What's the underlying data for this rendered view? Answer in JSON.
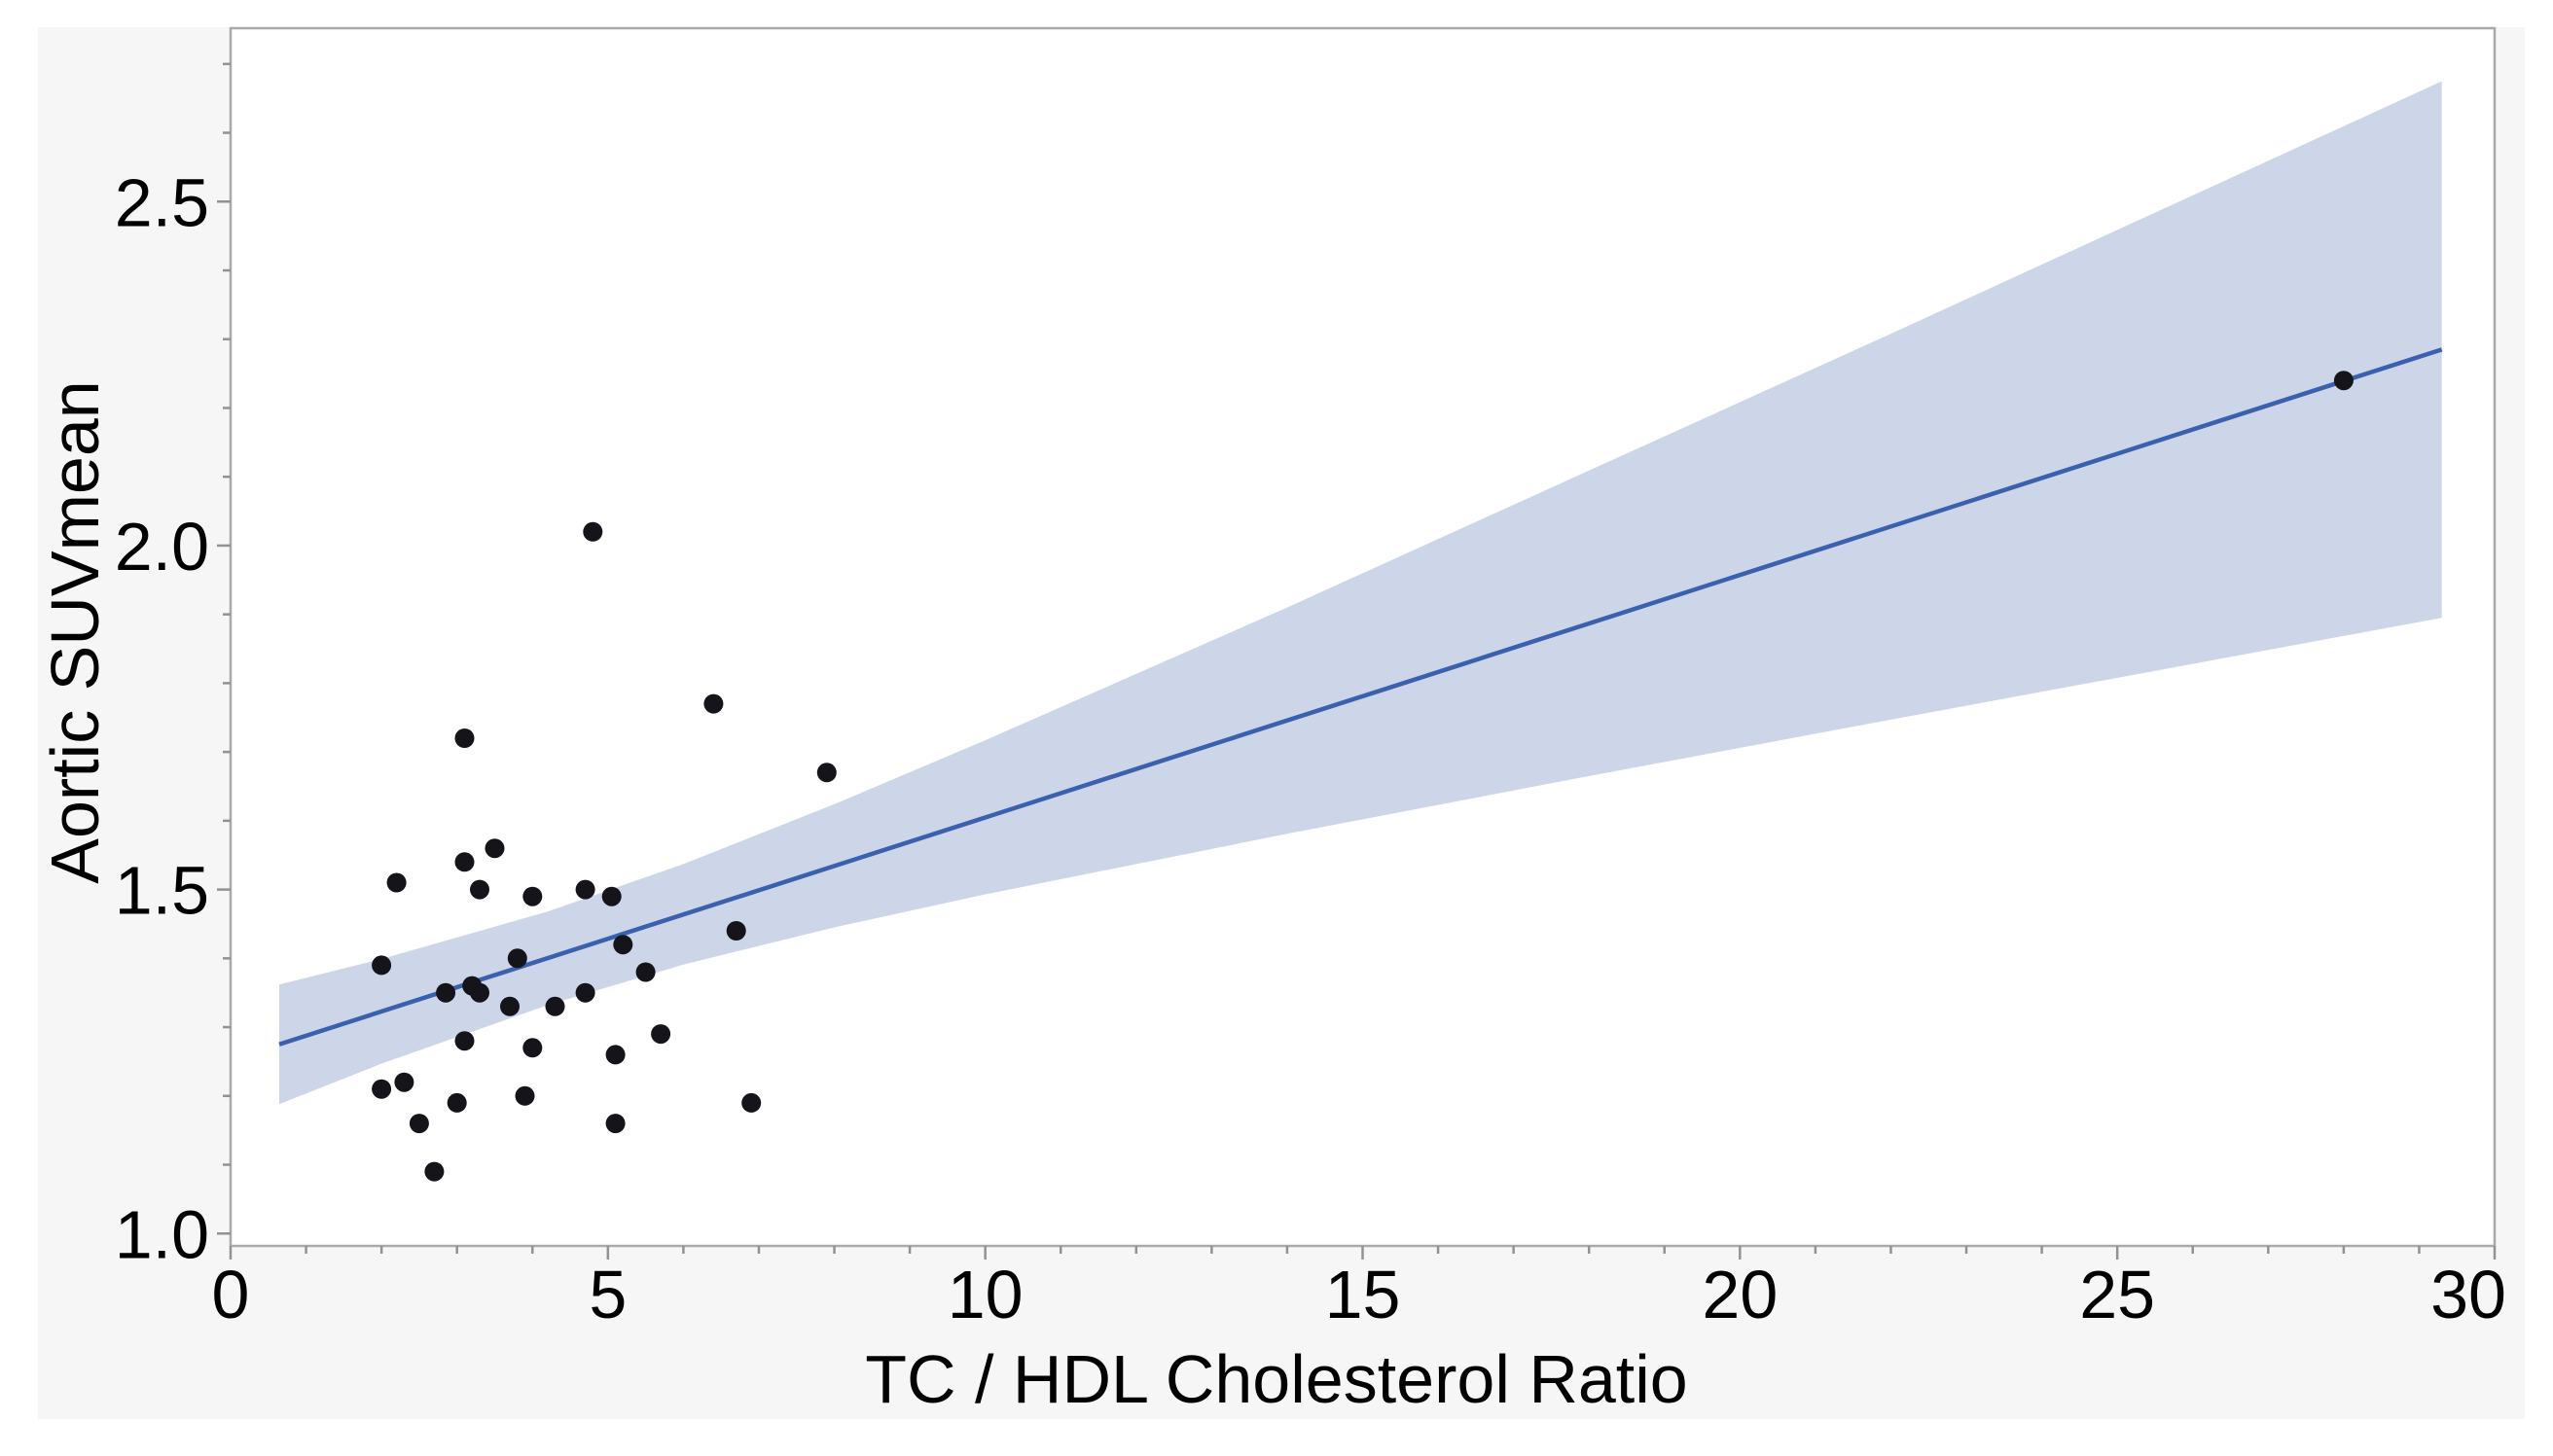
{
  "figure": {
    "background": "#ffffff",
    "panel_background": "#f6f6f7"
  },
  "chart_data": {
    "type": "scatter",
    "title": "",
    "xlabel": "TC / HDL Cholesterol Ratio",
    "ylabel": "Aortic SUVmean",
    "xlim": [
      0,
      30
    ],
    "ylim": [
      0.982,
      2.752
    ],
    "grid": false,
    "legend": null,
    "x_major_ticks": [
      0,
      5,
      10,
      15,
      20,
      25,
      30
    ],
    "x_tick_labels": [
      "0",
      "5",
      "10",
      "15",
      "20",
      "25",
      "30"
    ],
    "x_minor_step": 1,
    "y_major_ticks": [
      1.0,
      1.5,
      2.0,
      2.5
    ],
    "y_tick_labels": [
      "1.0",
      "1.5",
      "2.0",
      "2.5"
    ],
    "y_minor_step": 0.1,
    "y_minor_range": [
      1.0,
      2.7
    ],
    "points": [
      [
        4.8,
        2.02
      ],
      [
        3.1,
        1.72
      ],
      [
        6.4,
        1.77
      ],
      [
        7.9,
        1.67
      ],
      [
        3.5,
        1.56
      ],
      [
        3.1,
        1.54
      ],
      [
        2.2,
        1.51
      ],
      [
        3.3,
        1.5
      ],
      [
        4.0,
        1.49
      ],
      [
        4.7,
        1.5
      ],
      [
        5.05,
        1.49
      ],
      [
        5.2,
        1.42
      ],
      [
        6.7,
        1.44
      ],
      [
        2.0,
        1.39
      ],
      [
        3.8,
        1.4
      ],
      [
        2.85,
        1.35
      ],
      [
        3.2,
        1.36
      ],
      [
        3.3,
        1.35
      ],
      [
        3.7,
        1.33
      ],
      [
        4.3,
        1.33
      ],
      [
        4.7,
        1.35
      ],
      [
        5.5,
        1.38
      ],
      [
        3.1,
        1.28
      ],
      [
        4.0,
        1.27
      ],
      [
        5.1,
        1.26
      ],
      [
        5.7,
        1.29
      ],
      [
        2.0,
        1.21
      ],
      [
        2.3,
        1.22
      ],
      [
        3.0,
        1.19
      ],
      [
        3.9,
        1.2
      ],
      [
        2.5,
        1.16
      ],
      [
        5.1,
        1.16
      ],
      [
        2.7,
        1.09
      ],
      [
        6.9,
        1.19
      ],
      [
        28.0,
        2.24
      ]
    ],
    "fit_line": {
      "x_start": 0.645,
      "y_start": 1.275,
      "x_end": 29.3,
      "y_end": 2.285,
      "slope": 0.0352,
      "intercept": 1.252
    },
    "confidence_band": {
      "x": [
        0.645,
        2.0,
        4.2,
        6.0,
        8.0,
        10.0,
        14.0,
        18.0,
        22.0,
        26.0,
        29.3
      ],
      "top": [
        1.362,
        1.399,
        1.468,
        1.537,
        1.624,
        1.717,
        1.91,
        2.109,
        2.308,
        2.509,
        2.675
      ],
      "bottom": [
        1.188,
        1.247,
        1.332,
        1.391,
        1.445,
        1.493,
        1.581,
        1.665,
        1.747,
        1.828,
        1.895
      ]
    },
    "colors": {
      "point": "#14141a",
      "fit_line": "#3b61ae",
      "band": "#cdd5e9",
      "plot_border": "#a7a9ab",
      "tick": "#909295",
      "text": "#000000",
      "plot_background": "#ffffff"
    }
  }
}
